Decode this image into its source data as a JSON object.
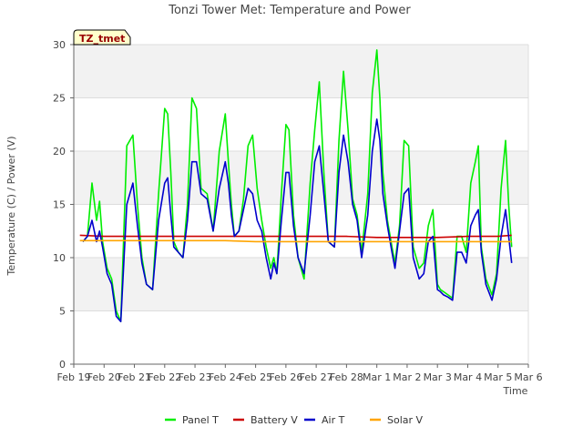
{
  "chart_data": {
    "type": "line",
    "title": "Tonzi Tower Met: Temperature and Power",
    "xlabel": "Time",
    "ylabel": "Temperature (C) / Power (V)",
    "badge": "TZ_tmet",
    "xlim": [
      0,
      15
    ],
    "ylim": [
      0,
      30
    ],
    "yticks": [
      0,
      5,
      10,
      15,
      20,
      25,
      30
    ],
    "xtick_positions": [
      0,
      1,
      2,
      3,
      4,
      5,
      6,
      7,
      8,
      9,
      10,
      11,
      12,
      13,
      14,
      15
    ],
    "xtick_labels": [
      "Feb 19",
      "Feb 20",
      "Feb 21",
      "Feb 22",
      "Feb 23",
      "Feb 24",
      "Feb 25",
      "Feb 26",
      "Feb 27",
      "Feb 28",
      "Mar 1",
      "Mar 2",
      "Mar 3",
      "Mar 4",
      "Mar 5",
      "Mar 6"
    ],
    "series": [
      {
        "name": "Panel T",
        "color": "#00ee00",
        "x": [
          0.3,
          0.45,
          0.6,
          0.75,
          0.85,
          0.95,
          1.1,
          1.25,
          1.4,
          1.55,
          1.75,
          1.95,
          2.1,
          2.25,
          2.4,
          2.6,
          2.8,
          3.0,
          3.1,
          3.2,
          3.3,
          3.45,
          3.6,
          3.75,
          3.9,
          4.05,
          4.2,
          4.4,
          4.6,
          4.8,
          5.0,
          5.1,
          5.2,
          5.3,
          5.45,
          5.6,
          5.75,
          5.9,
          6.05,
          6.2,
          6.35,
          6.5,
          6.6,
          6.7,
          6.85,
          7.0,
          7.1,
          7.25,
          7.4,
          7.6,
          7.8,
          7.95,
          8.1,
          8.25,
          8.4,
          8.6,
          8.75,
          8.9,
          9.05,
          9.2,
          9.35,
          9.5,
          9.7,
          9.85,
          10.0,
          10.1,
          10.2,
          10.35,
          10.5,
          10.6,
          10.75,
          10.9,
          11.05,
          11.2,
          11.4,
          11.55,
          11.7,
          11.85,
          12.0,
          12.1,
          12.2,
          12.35,
          12.5,
          12.65,
          12.8,
          12.95,
          13.1,
          13.25,
          13.35,
          13.45,
          13.6,
          13.8,
          13.95,
          14.1,
          14.25,
          14.35,
          14.45
        ],
        "y": [
          11.5,
          12.0,
          17.0,
          13.5,
          15.3,
          11.5,
          9.0,
          8.0,
          5.0,
          4.0,
          20.5,
          21.5,
          15.0,
          10.0,
          7.5,
          7.0,
          16.0,
          24.0,
          23.5,
          18.0,
          11.5,
          10.5,
          10.0,
          15.0,
          25.0,
          24.0,
          16.5,
          16.0,
          12.5,
          20.0,
          23.5,
          19.0,
          15.0,
          12.0,
          12.5,
          15.5,
          20.5,
          21.5,
          16.5,
          13.5,
          11.0,
          9.0,
          10.0,
          8.5,
          16.0,
          22.5,
          22.0,
          14.0,
          10.0,
          8.0,
          17.0,
          22.0,
          26.5,
          18.0,
          11.5,
          11.0,
          21.0,
          27.5,
          22.0,
          15.5,
          14.0,
          10.5,
          16.0,
          25.5,
          29.5,
          25.0,
          18.0,
          13.5,
          11.0,
          9.5,
          13.0,
          21.0,
          20.5,
          11.0,
          9.0,
          9.5,
          13.0,
          14.5,
          7.5,
          7.0,
          6.8,
          6.5,
          6.2,
          12.0,
          12.0,
          10.5,
          17.0,
          19.0,
          20.5,
          11.0,
          8.0,
          6.5,
          8.5,
          16.5,
          21.0,
          15.0,
          11.0
        ]
      },
      {
        "name": "Battery V",
        "color": "#cc0000",
        "x": [
          0.2,
          1.0,
          2.0,
          3.0,
          4.0,
          5.0,
          6.0,
          7.0,
          8.0,
          9.0,
          10.0,
          11.0,
          12.0,
          13.0,
          14.0,
          14.45
        ],
        "y": [
          12.1,
          12.0,
          12.0,
          12.0,
          12.0,
          12.0,
          12.0,
          12.0,
          12.0,
          12.0,
          11.9,
          11.9,
          11.9,
          12.0,
          12.0,
          12.1
        ]
      },
      {
        "name": "Air T",
        "color": "#0000cc",
        "x": [
          0.3,
          0.45,
          0.6,
          0.75,
          0.85,
          0.95,
          1.1,
          1.25,
          1.4,
          1.55,
          1.75,
          1.95,
          2.1,
          2.25,
          2.4,
          2.6,
          2.8,
          3.0,
          3.1,
          3.2,
          3.3,
          3.45,
          3.6,
          3.75,
          3.9,
          4.05,
          4.2,
          4.4,
          4.6,
          4.8,
          5.0,
          5.1,
          5.2,
          5.3,
          5.45,
          5.6,
          5.75,
          5.9,
          6.05,
          6.2,
          6.35,
          6.5,
          6.6,
          6.7,
          6.85,
          7.0,
          7.1,
          7.25,
          7.4,
          7.6,
          7.8,
          7.95,
          8.1,
          8.25,
          8.4,
          8.6,
          8.75,
          8.9,
          9.05,
          9.2,
          9.35,
          9.5,
          9.7,
          9.85,
          10.0,
          10.1,
          10.2,
          10.35,
          10.5,
          10.6,
          10.75,
          10.9,
          11.05,
          11.2,
          11.4,
          11.55,
          11.7,
          11.85,
          12.0,
          12.1,
          12.2,
          12.35,
          12.5,
          12.65,
          12.8,
          12.95,
          13.1,
          13.25,
          13.35,
          13.45,
          13.6,
          13.8,
          13.95,
          14.1,
          14.25,
          14.35,
          14.45
        ],
        "y": [
          11.5,
          12.0,
          13.5,
          11.5,
          12.5,
          11.0,
          8.5,
          7.5,
          4.5,
          4.0,
          15.0,
          17.0,
          13.0,
          9.5,
          7.5,
          7.0,
          13.5,
          17.0,
          17.5,
          14.0,
          11.0,
          10.5,
          10.0,
          13.5,
          19.0,
          19.0,
          16.0,
          15.5,
          12.5,
          16.5,
          19.0,
          17.0,
          14.0,
          12.0,
          12.5,
          14.5,
          16.5,
          16.0,
          13.5,
          12.5,
          10.0,
          8.0,
          9.5,
          8.5,
          13.5,
          18.0,
          18.0,
          13.0,
          10.0,
          8.5,
          14.0,
          19.0,
          20.5,
          16.0,
          11.5,
          11.0,
          18.0,
          21.5,
          19.0,
          15.0,
          13.5,
          10.0,
          14.0,
          20.0,
          23.0,
          21.0,
          16.0,
          13.0,
          10.5,
          9.0,
          12.5,
          16.0,
          16.5,
          10.0,
          8.0,
          8.5,
          11.5,
          12.0,
          7.0,
          6.8,
          6.5,
          6.3,
          6.0,
          10.5,
          10.5,
          9.5,
          13.0,
          14.0,
          14.5,
          10.5,
          7.5,
          6.0,
          8.0,
          12.0,
          14.5,
          12.0,
          9.5
        ]
      },
      {
        "name": "Solar V",
        "color": "#ffa500",
        "x": [
          0.2,
          1.0,
          2.0,
          3.0,
          4.0,
          5.0,
          6.0,
          7.0,
          8.0,
          9.0,
          10.0,
          11.0,
          12.0,
          13.0,
          14.0,
          14.45
        ],
        "y": [
          11.6,
          11.6,
          11.6,
          11.6,
          11.6,
          11.6,
          11.5,
          11.5,
          11.5,
          11.5,
          11.5,
          11.5,
          11.5,
          11.5,
          11.5,
          11.5
        ]
      }
    ]
  }
}
